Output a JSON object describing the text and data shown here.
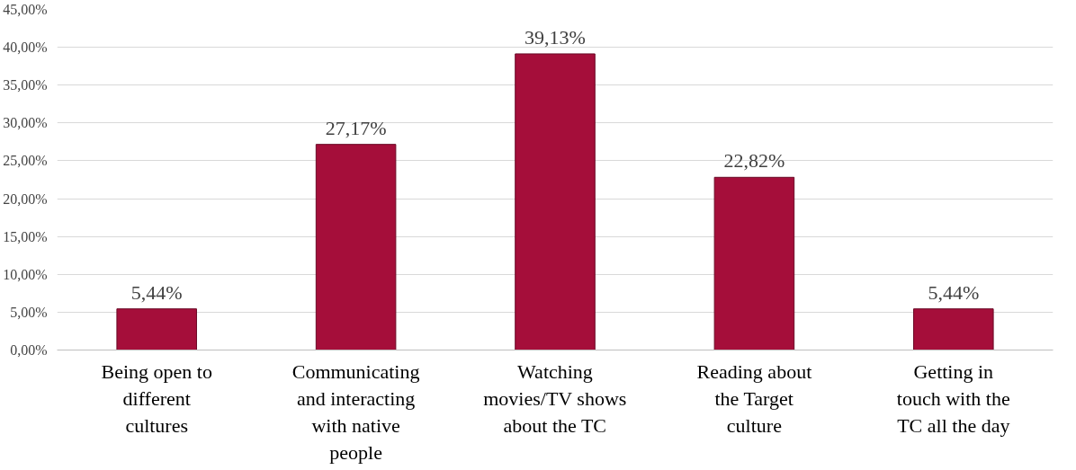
{
  "chart_data": {
    "type": "bar",
    "categories": [
      "Being open to different cultures",
      "Communicating and interacting with native people",
      "Watching movies/TV shows about the TC",
      "Reading about the Target culture",
      "Getting in touch with the TC all the day"
    ],
    "values": [
      5.44,
      27.17,
      39.13,
      22.82,
      5.44
    ],
    "value_labels": [
      "5,44%",
      "27,17%",
      "39,13%",
      "22,82%",
      "5,44%"
    ],
    "color": "#a50e3a",
    "ylim": [
      0,
      45
    ],
    "yticks": [
      {
        "value": 0,
        "label": "0,00%"
      },
      {
        "value": 5,
        "label": "5,00%"
      },
      {
        "value": 10,
        "label": "10,00%"
      },
      {
        "value": 15,
        "label": "15,00%"
      },
      {
        "value": 20,
        "label": "20,00%"
      },
      {
        "value": 25,
        "label": "25,00%"
      },
      {
        "value": 30,
        "label": "30,00%"
      },
      {
        "value": 35,
        "label": "35,00%"
      },
      {
        "value": 40,
        "label": "40,00%"
      },
      {
        "value": 45,
        "label": "45,00%"
      }
    ],
    "grid": "y"
  }
}
